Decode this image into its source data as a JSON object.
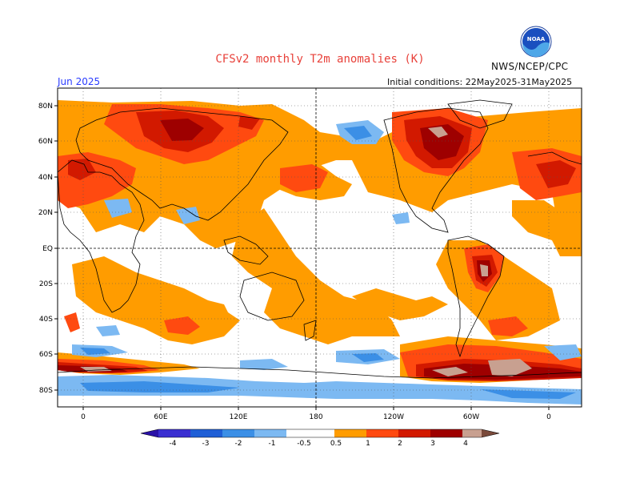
{
  "header": {
    "title": "CFSv2 monthly T2m anomalies (K)",
    "org": "NWS/NCEP/CPC",
    "logo_text": "NOAA",
    "valid_month": "Jun 2025",
    "initial_conditions": "Initial conditions: 22May2025-31May2025"
  },
  "map": {
    "lat_labels": [
      "80N",
      "60N",
      "40N",
      "20N",
      "EQ",
      "20S",
      "40S",
      "60S",
      "80S"
    ],
    "lon_labels": [
      "0",
      "60E",
      "120E",
      "180",
      "120W",
      "60W",
      "0"
    ]
  },
  "colorbar": {
    "labels": [
      "-4",
      "-3",
      "-2",
      "-1",
      "-0.5",
      "0.5",
      "1",
      "2",
      "3",
      "4"
    ],
    "colors": {
      "lt_-4": "#2a12a8",
      "-4_-3": "#3a2fd1",
      "-3_-2": "#1f5fd6",
      "-2_-1": "#3b8fe6",
      "-1_-0.5": "#7cb9f2",
      "-0.5_0.5": "#ffffff",
      "0.5_1": "#ff9c00",
      "1_2": "#ff4a10",
      "2_3": "#d21900",
      "3_4": "#9e0000",
      "4_plus": "#c8a090",
      "gt_top": "#7a4a3a"
    }
  },
  "colors": {
    "title": "#e8413a",
    "month": "#2a3cff",
    "warm1": "#ff9c00",
    "warm2": "#ff4a10",
    "warm3": "#d21900",
    "warm4": "#9e0000",
    "warm5": "#c8a090",
    "cool1": "#7cb9f2",
    "cool2": "#3b8fe6"
  }
}
